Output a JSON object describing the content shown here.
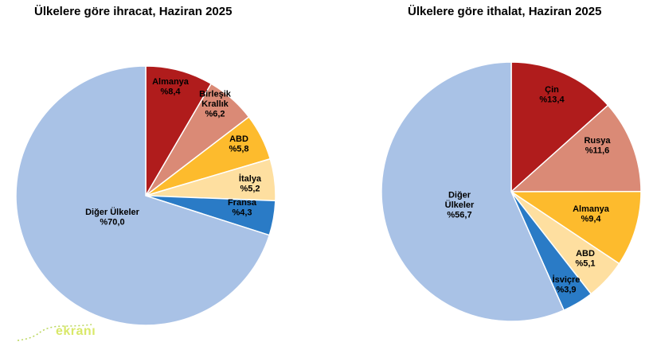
{
  "chart_data": [
    {
      "type": "pie",
      "title": "Ülkelere göre ihracat, Haziran 2025",
      "slices": [
        {
          "label": [
            "Almanya"
          ],
          "value_text": "%8,4",
          "value": 8.4,
          "color": "#b01c1c",
          "text_color": "#000000"
        },
        {
          "label": [
            "Birleşik",
            "Krallık"
          ],
          "value_text": "%6,2",
          "value": 6.2,
          "color": "#da8a76",
          "text_color": "#000000"
        },
        {
          "label": [
            "ABD"
          ],
          "value_text": "%5,8",
          "value": 5.8,
          "color": "#fdbb2d",
          "text_color": "#000000"
        },
        {
          "label": [
            "İtalya"
          ],
          "value_text": "%5,2",
          "value": 5.2,
          "color": "#fedfa0",
          "text_color": "#000000"
        },
        {
          "label": [
            "Fransa"
          ],
          "value_text": "%4,3",
          "value": 4.3,
          "color": "#2a7bc6",
          "text_color": "#000000"
        },
        {
          "label": [
            "Diğer Ülkeler"
          ],
          "value_text": "%70,0",
          "value": 70.0,
          "color": "#a9c2e6",
          "text_color": "#000000"
        }
      ]
    },
    {
      "type": "pie",
      "title": "Ülkelere göre ithalat, Haziran 2025",
      "slices": [
        {
          "label": [
            "Çin"
          ],
          "value_text": "%13,4",
          "value": 13.4,
          "color": "#b01c1c",
          "text_color": "#000000"
        },
        {
          "label": [
            "Rusya"
          ],
          "value_text": "%11,6",
          "value": 11.6,
          "color": "#da8a76",
          "text_color": "#000000"
        },
        {
          "label": [
            "Almanya"
          ],
          "value_text": "%9,4",
          "value": 9.4,
          "color": "#fdbb2d",
          "text_color": "#000000"
        },
        {
          "label": [
            "ABD"
          ],
          "value_text": "%5,1",
          "value": 5.1,
          "color": "#fedfa0",
          "text_color": "#000000"
        },
        {
          "label": [
            "İsviçre"
          ],
          "value_text": "%3,9",
          "value": 3.9,
          "color": "#2a7bc6",
          "text_color": "#000000"
        },
        {
          "label": [
            "Diğer",
            "Ülkeler"
          ],
          "value_text": "%56,7",
          "value": 56.7,
          "color": "#a9c2e6",
          "text_color": "#000000"
        }
      ]
    }
  ],
  "watermark": "ekranı"
}
